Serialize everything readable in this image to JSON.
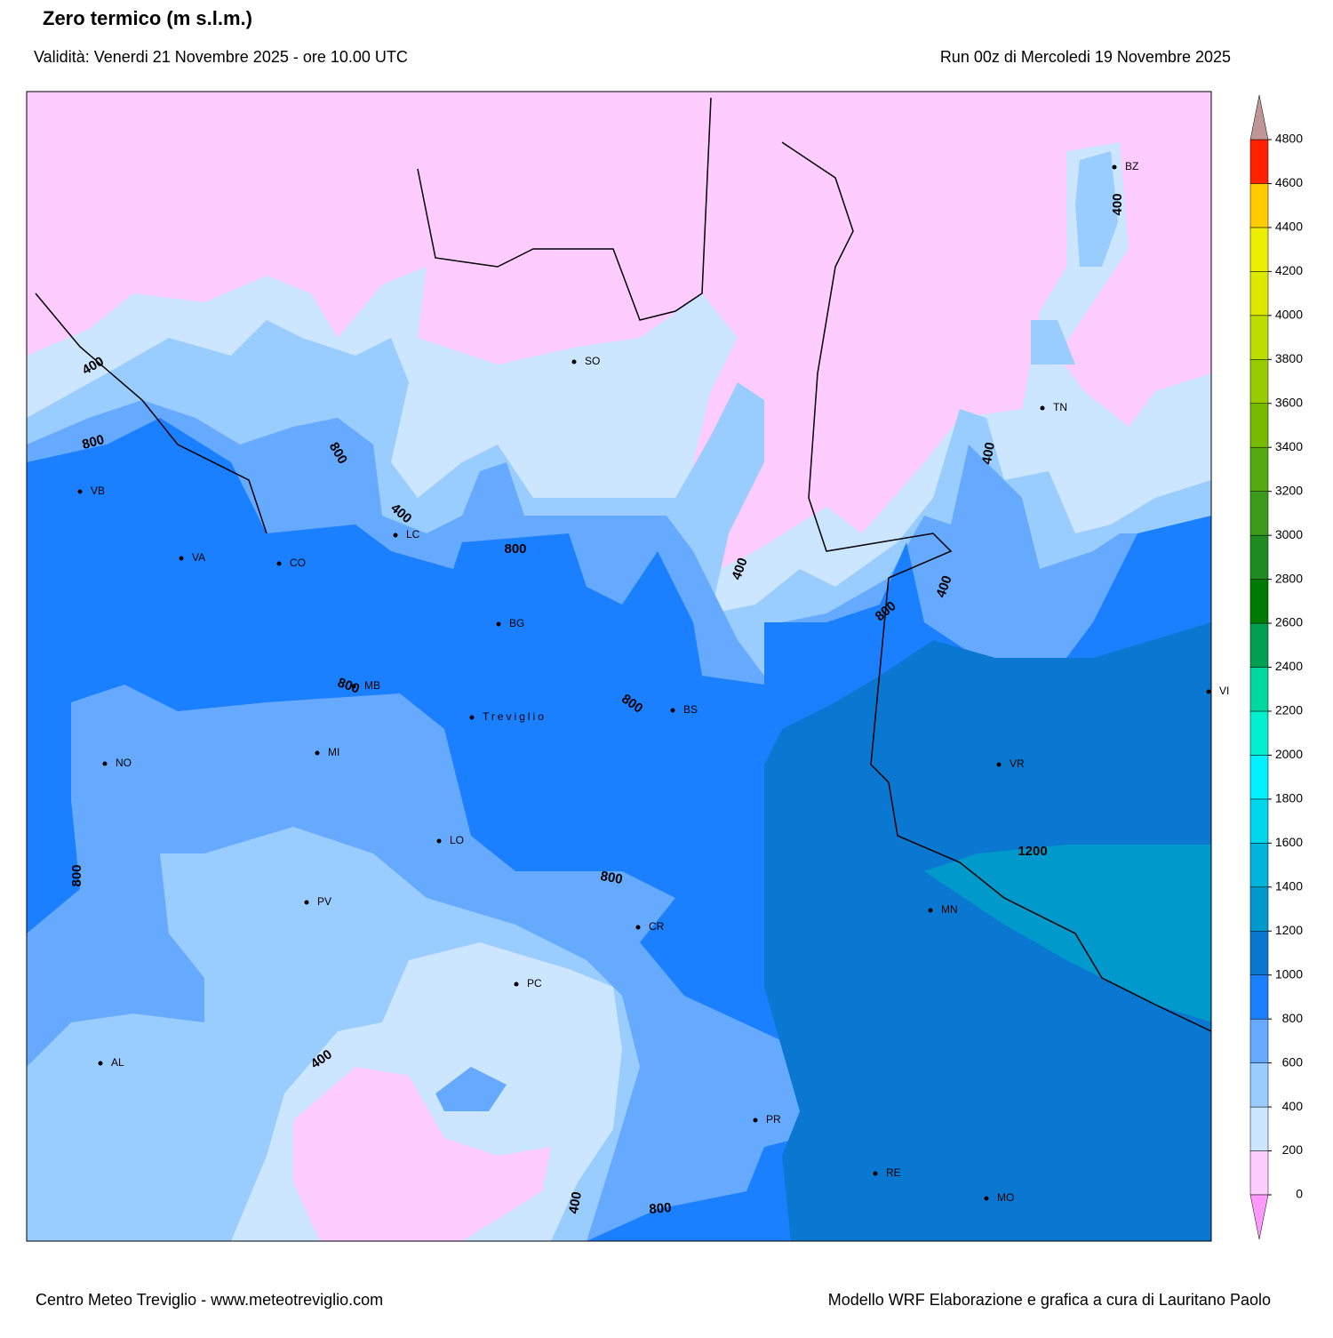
{
  "header": {
    "title": "Zero termico (m s.l.m.)",
    "validity": "Validità: Venerdi 21 Novembre 2025 - ore 10.00 UTC",
    "run": "Run 00z di Mercoledi 19 Novembre 2025"
  },
  "map": {
    "cities": [
      "BZ",
      "SO",
      "TN",
      "VB",
      "VA",
      "CO",
      "LC",
      "BG",
      "MB",
      "Treviglio",
      "BS",
      "VI",
      "NO",
      "MI",
      "VR",
      "LO",
      "PV",
      "MN",
      "CR",
      "PC",
      "AL",
      "PR",
      "RE",
      "MO"
    ],
    "contour_labels": [
      400,
      800,
      800,
      400,
      800,
      400,
      400,
      400,
      800,
      400,
      800,
      800,
      1200,
      800,
      800,
      400,
      400,
      800
    ]
  },
  "colorbar": {
    "ticks": [
      0,
      200,
      400,
      600,
      800,
      1000,
      1200,
      1400,
      1600,
      1800,
      2000,
      2200,
      2400,
      2600,
      2800,
      3000,
      3200,
      3400,
      3600,
      3800,
      4000,
      4200,
      4400,
      4600,
      4800
    ],
    "colors": [
      "#ffccff",
      "#cce6ff",
      "#99ccff",
      "#66aaff",
      "#1a80ff",
      "#0a78d0",
      "#0099cc",
      "#00b4dc",
      "#00d6ee",
      "#00f0ff",
      "#00f0d0",
      "#00d8a0",
      "#00a050",
      "#007a00",
      "#1f8a1f",
      "#3a9a1a",
      "#55aa11",
      "#77bb00",
      "#99cc00",
      "#bbdd00",
      "#dde800",
      "#eeee00",
      "#ffcc00",
      "#ff2200"
    ],
    "under_color": "#ff99ff",
    "over_color": "#c09595"
  },
  "footer": {
    "left": "Centro Meteo Treviglio - www.meteotreviglio.com",
    "right": "Modello WRF Elaborazione e grafica a cura di Lauritano Paolo"
  }
}
